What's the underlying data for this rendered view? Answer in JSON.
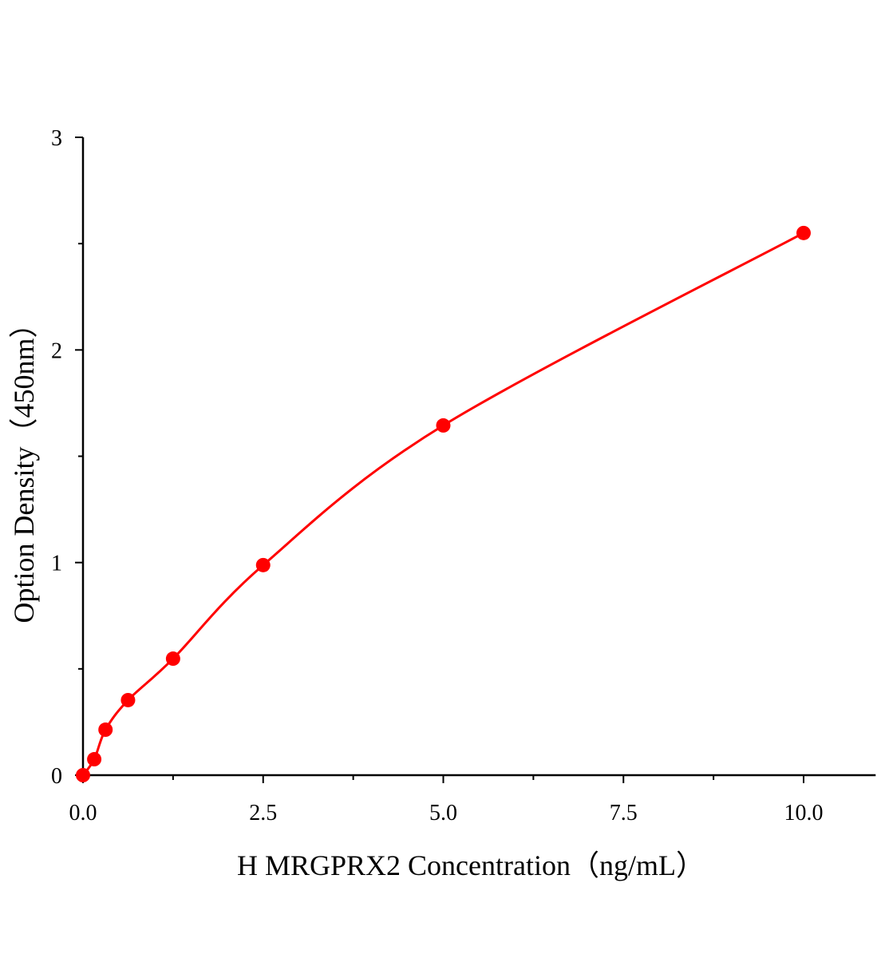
{
  "chart_data": {
    "type": "scatter",
    "title": "",
    "xlabel": "H MRGPRX2 Concentration（ng/mL）",
    "ylabel": "Option Density（450nm）",
    "xlim": [
      0,
      11
    ],
    "ylim": [
      0,
      3
    ],
    "x_ticks": [
      "0.0",
      "2.5",
      "5.0",
      "7.5",
      "10.0"
    ],
    "x_tick_values": [
      0,
      2.5,
      5,
      7.5,
      10
    ],
    "y_ticks": [
      "0",
      "1",
      "2",
      "3"
    ],
    "y_tick_values": [
      0,
      1,
      2,
      3
    ],
    "grid": false,
    "fit_curve": true,
    "color": "#ff0000",
    "series": [
      {
        "x": [
          0,
          0.156,
          0.3125,
          0.625,
          1.25,
          2.5,
          5,
          10
        ],
        "y": [
          0.0,
          0.075,
          0.214,
          0.353,
          0.548,
          0.988,
          1.645,
          2.55
        ]
      }
    ]
  }
}
